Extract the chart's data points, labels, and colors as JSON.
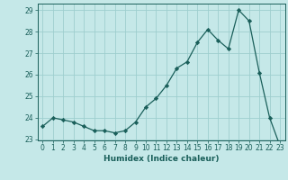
{
  "x": [
    0,
    1,
    2,
    3,
    4,
    5,
    6,
    7,
    8,
    9,
    10,
    11,
    12,
    13,
    14,
    15,
    16,
    17,
    18,
    19,
    20,
    21,
    22,
    23
  ],
  "y": [
    23.6,
    24.0,
    23.9,
    23.8,
    23.6,
    23.4,
    23.4,
    23.3,
    23.4,
    23.8,
    24.5,
    24.9,
    25.5,
    26.3,
    26.6,
    27.5,
    28.1,
    27.6,
    27.2,
    29.0,
    28.5,
    26.1,
    24.0,
    22.7
  ],
  "line_color": "#1a5f5a",
  "marker": "D",
  "marker_size": 2.2,
  "bg_color": "#c5e8e8",
  "grid_color": "#9ecece",
  "xlabel": "Humidex (Indice chaleur)",
  "xlim": [
    -0.5,
    23.5
  ],
  "ylim": [
    22.95,
    29.3
  ],
  "yticks": [
    23,
    24,
    25,
    26,
    27,
    28,
    29
  ],
  "xticks": [
    0,
    1,
    2,
    3,
    4,
    5,
    6,
    7,
    8,
    9,
    10,
    11,
    12,
    13,
    14,
    15,
    16,
    17,
    18,
    19,
    20,
    21,
    22,
    23
  ],
  "tick_color": "#1a5f5a",
  "label_fontsize": 6.5,
  "tick_fontsize": 5.5
}
